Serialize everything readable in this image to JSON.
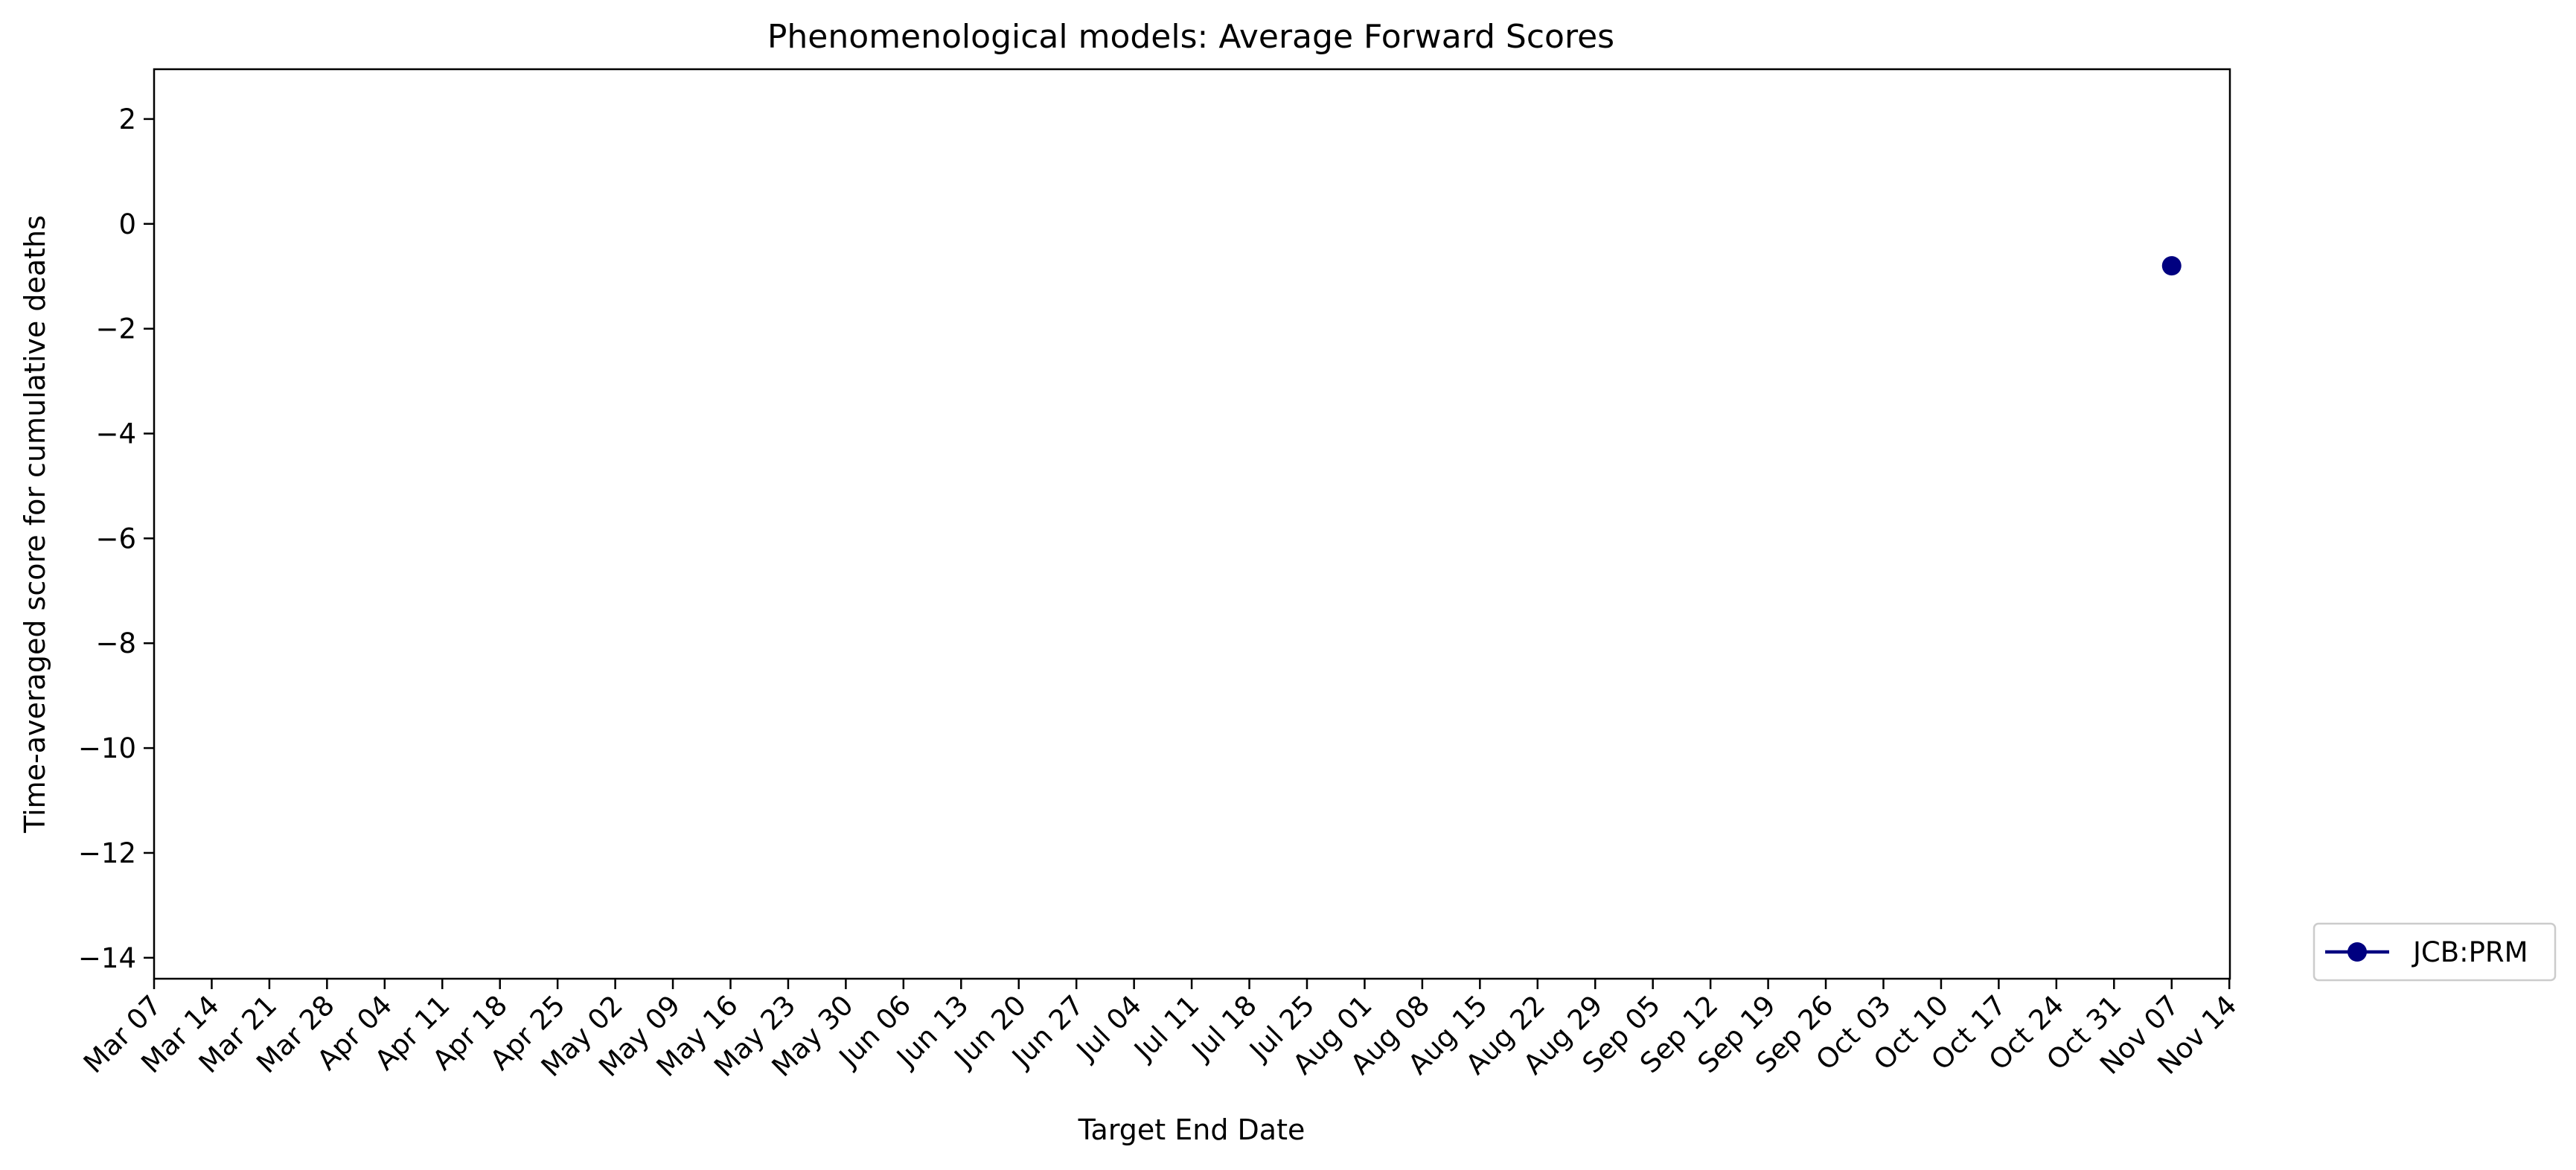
{
  "chart_data": {
    "type": "line",
    "title": "Phenomenological models: Average Forward Scores",
    "xlabel": "Target End Date",
    "ylabel": "Time-averaged score for cumulative deaths",
    "x_ticks": [
      "Mar 07",
      "Mar 14",
      "Mar 21",
      "Mar 28",
      "Apr 04",
      "Apr 11",
      "Apr 18",
      "Apr 25",
      "May 02",
      "May 09",
      "May 16",
      "May 23",
      "May 30",
      "Jun 06",
      "Jun 13",
      "Jun 20",
      "Jun 27",
      "Jul 04",
      "Jul 11",
      "Jul 18",
      "Jul 25",
      "Aug 01",
      "Aug 08",
      "Aug 15",
      "Aug 22",
      "Aug 29",
      "Sep 05",
      "Sep 12",
      "Sep 19",
      "Sep 26",
      "Oct 03",
      "Oct 10",
      "Oct 17",
      "Oct 24",
      "Oct 31",
      "Nov 07",
      "Nov 14"
    ],
    "y_ticks": [
      2,
      0,
      -2,
      -4,
      -6,
      -8,
      -10,
      -12,
      -14
    ],
    "ylim": [
      -14.4,
      2.95
    ],
    "xlim": [
      "Mar 07",
      "Nov 14"
    ],
    "grid": false,
    "legend_position": "outside-right-bottom",
    "series": [
      {
        "name": "JCB:PRM",
        "color": "#000080",
        "marker": "circle",
        "points": [
          {
            "x": "Nov 07",
            "y": -0.8
          }
        ]
      }
    ]
  }
}
